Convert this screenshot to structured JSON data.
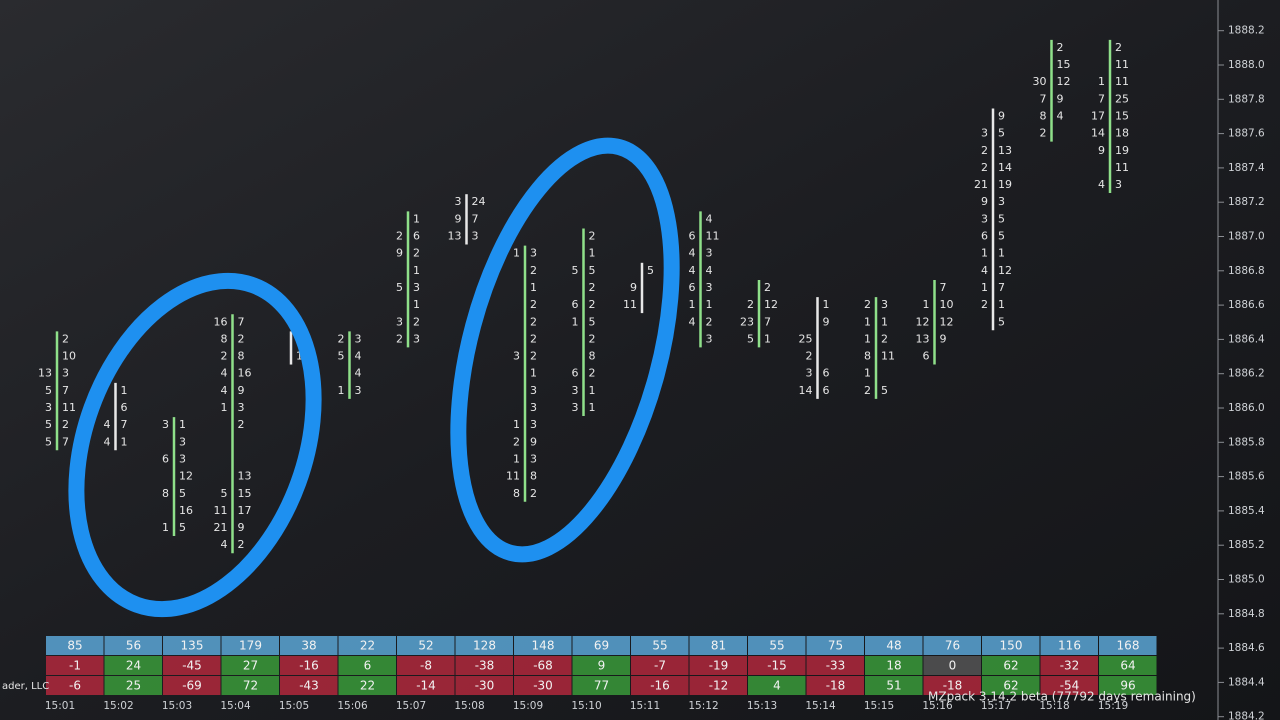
{
  "price_axis": [
    "1888.2",
    "1888.0",
    "1887.8",
    "1887.6",
    "1887.4",
    "1887.2",
    "1887.0",
    "1886.8",
    "1886.6",
    "1886.4",
    "1886.2",
    "1886.0",
    "1885.8",
    "1885.6",
    "1885.4",
    "1885.2",
    "1885.0",
    "1884.8",
    "1884.6",
    "1884.4",
    "1884.2"
  ],
  "time_axis": [
    "15:01",
    "15:02",
    "15:03",
    "15:04",
    "15:05",
    "15:06",
    "15:07",
    "15:08",
    "15:09",
    "15:10",
    "15:11",
    "15:12",
    "15:13",
    "15:14",
    "15:15",
    "15:16",
    "15:17",
    "15:18",
    "15:19"
  ],
  "bars": [
    {
      "top": 1886.4,
      "cells": [
        [
          null,
          2
        ],
        [
          null,
          10
        ],
        [
          13,
          3
        ],
        [
          5,
          7
        ],
        [
          3,
          11
        ],
        [
          5,
          2
        ],
        [
          5,
          7
        ]
      ]
    },
    {
      "top": 1886.1,
      "cells": [
        [
          null,
          1
        ],
        [
          null,
          6
        ],
        [
          4,
          7
        ],
        [
          4,
          1
        ]
      ]
    },
    {
      "top": 1885.9,
      "cells": [
        [
          3,
          1
        ],
        [
          null,
          3
        ],
        [
          6,
          3
        ],
        [
          null,
          12
        ],
        [
          8,
          5
        ],
        [
          null,
          16
        ],
        [
          1,
          5
        ]
      ]
    },
    {
      "top": 1886.5,
      "cells": [
        [
          16,
          7
        ],
        [
          8,
          2
        ],
        [
          2,
          8
        ],
        [
          4,
          16
        ],
        [
          4,
          9
        ],
        [
          1,
          3
        ],
        [
          null,
          2
        ],
        [
          null,
          null
        ],
        [
          null,
          null
        ],
        [
          null,
          13
        ],
        [
          5,
          15
        ],
        [
          11,
          17
        ],
        [
          21,
          9
        ],
        [
          4,
          2
        ]
      ]
    },
    {
      "top": 1886.4,
      "cells": [
        [
          null,
          2
        ],
        [
          null,
          1
        ]
      ]
    },
    {
      "top": 1886.4,
      "cells": [
        [
          2,
          3
        ],
        [
          5,
          4
        ],
        [
          null,
          4
        ],
        [
          1,
          3
        ]
      ]
    },
    {
      "top": 1887.1,
      "cells": [
        [
          null,
          1
        ],
        [
          2,
          6
        ],
        [
          9,
          2
        ],
        [
          null,
          1
        ],
        [
          5,
          3
        ],
        [
          null,
          1
        ],
        [
          3,
          2
        ],
        [
          2,
          3
        ]
      ]
    },
    {
      "top": 1887.2,
      "cells": [
        [
          3,
          24
        ],
        [
          9,
          7
        ],
        [
          13,
          3
        ]
      ]
    },
    {
      "top": 1886.9,
      "cells": [
        [
          1,
          3
        ],
        [
          null,
          2
        ],
        [
          null,
          1
        ],
        [
          null,
          2
        ],
        [
          null,
          2
        ],
        [
          null,
          2
        ],
        [
          3,
          2
        ],
        [
          null,
          1
        ],
        [
          null,
          3
        ],
        [
          null,
          3
        ],
        [
          1,
          3
        ],
        [
          2,
          9
        ],
        [
          1,
          3
        ],
        [
          11,
          8
        ],
        [
          8,
          2
        ]
      ]
    },
    {
      "top": 1887.0,
      "cells": [
        [
          null,
          2
        ],
        [
          null,
          1
        ],
        [
          5,
          5
        ],
        [
          null,
          2
        ],
        [
          6,
          2
        ],
        [
          1,
          5
        ],
        [
          null,
          2
        ],
        [
          null,
          8
        ],
        [
          6,
          2
        ],
        [
          3,
          1
        ],
        [
          3,
          1
        ]
      ]
    },
    {
      "top": 1886.8,
      "cells": [
        [
          null,
          5
        ],
        [
          9,
          null
        ],
        [
          11,
          null
        ]
      ]
    },
    {
      "top": 1887.1,
      "cells": [
        [
          null,
          4
        ],
        [
          6,
          11
        ],
        [
          4,
          3
        ],
        [
          4,
          4
        ],
        [
          6,
          3
        ],
        [
          1,
          1
        ],
        [
          4,
          2
        ],
        [
          null,
          3
        ]
      ]
    },
    {
      "top": 1886.7,
      "cells": [
        [
          null,
          2
        ],
        [
          2,
          12
        ],
        [
          23,
          7
        ],
        [
          5,
          1
        ]
      ]
    },
    {
      "top": 1886.6,
      "cells": [
        [
          null,
          1
        ],
        [
          null,
          9
        ],
        [
          25,
          null
        ],
        [
          2,
          null
        ],
        [
          3,
          6
        ],
        [
          14,
          6
        ]
      ]
    },
    {
      "top": 1886.6,
      "cells": [
        [
          2,
          3
        ],
        [
          1,
          1
        ],
        [
          1,
          2
        ],
        [
          8,
          11
        ],
        [
          1,
          null
        ],
        [
          2,
          5
        ]
      ]
    },
    {
      "top": 1886.7,
      "cells": [
        [
          null,
          7
        ],
        [
          1,
          10
        ],
        [
          12,
          12
        ],
        [
          13,
          9
        ],
        [
          6,
          null
        ]
      ]
    },
    {
      "top": 1887.7,
      "cells": [
        [
          null,
          9
        ],
        [
          3,
          5
        ],
        [
          2,
          13
        ],
        [
          2,
          14
        ],
        [
          21,
          19
        ],
        [
          9,
          3
        ],
        [
          3,
          5
        ],
        [
          6,
          5
        ],
        [
          1,
          1
        ],
        [
          4,
          12
        ],
        [
          1,
          7
        ],
        [
          2,
          1
        ],
        [
          null,
          5
        ]
      ]
    },
    {
      "top": 1888.1,
      "cells": [
        [
          null,
          2
        ],
        [
          null,
          15
        ],
        [
          30,
          12
        ],
        [
          7,
          9
        ],
        [
          8,
          4
        ],
        [
          2,
          null
        ]
      ]
    },
    {
      "top": 1888.1,
      "cells": [
        [
          null,
          2
        ],
        [
          null,
          11
        ],
        [
          1,
          11
        ],
        [
          7,
          25
        ],
        [
          17,
          15
        ],
        [
          14,
          18
        ],
        [
          9,
          19
        ],
        [
          null,
          11
        ],
        [
          4,
          3
        ]
      ]
    }
  ],
  "table": {
    "label": "ader, LLC",
    "rows": [
      [
        85,
        56,
        135,
        179,
        38,
        22,
        52,
        128,
        148,
        69,
        55,
        81,
        55,
        75,
        48,
        76,
        150,
        116,
        168
      ],
      [
        -1,
        24,
        -45,
        27,
        -16,
        6,
        -8,
        -38,
        -68,
        9,
        -7,
        -19,
        -15,
        -33,
        18,
        0,
        62,
        -32,
        64
      ],
      [
        -6,
        25,
        -69,
        72,
        -43,
        22,
        -14,
        -30,
        -30,
        77,
        -16,
        -12,
        4,
        -18,
        51,
        -18,
        62,
        -54,
        96
      ]
    ]
  },
  "footer": "MZpack 3.14.2 beta (77792 days remaining)"
}
